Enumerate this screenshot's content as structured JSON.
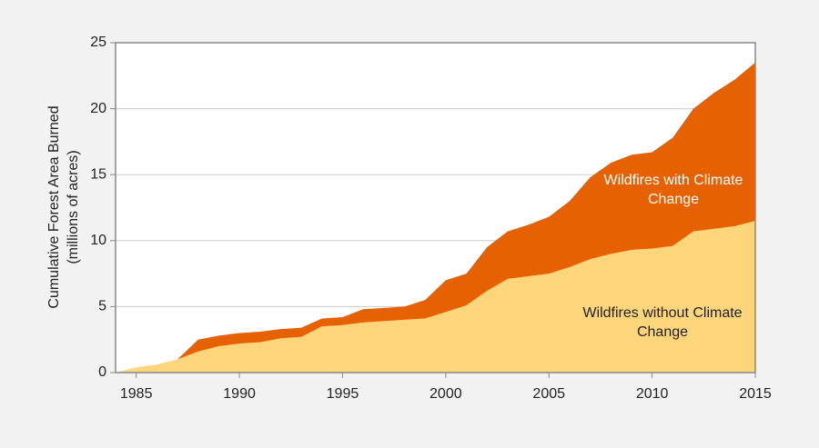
{
  "chart_data": {
    "type": "stacked_area",
    "y_label": [
      "Cumulative Forest Area Burned",
      "(millions of acres)"
    ],
    "x": [
      1984,
      1985,
      1986,
      1987,
      1988,
      1989,
      1990,
      1991,
      1992,
      1993,
      1994,
      1995,
      1996,
      1997,
      1998,
      1999,
      2000,
      2001,
      2002,
      2003,
      2004,
      2005,
      2006,
      2007,
      2008,
      2009,
      2010,
      2011,
      2012,
      2013,
      2014,
      2015
    ],
    "series": [
      {
        "name": "Wildfires without Climate Change",
        "color": "#fdd67b",
        "values": [
          0,
          0.4,
          0.6,
          1.0,
          1.6,
          2.0,
          2.2,
          2.3,
          2.6,
          2.7,
          3.5,
          3.6,
          3.8,
          3.9,
          4.0,
          4.1,
          4.6,
          5.1,
          6.2,
          7.1,
          7.3,
          7.5,
          8.0,
          8.6,
          9.0,
          9.3,
          9.4,
          9.6,
          10.7,
          10.9,
          11.1,
          11.5
        ]
      },
      {
        "name": "Wildfires with Climate Change",
        "color": "#e66101",
        "values": [
          0,
          0,
          0,
          0,
          0.9,
          0.8,
          0.8,
          0.8,
          0.7,
          0.7,
          0.6,
          0.6,
          1.0,
          1.0,
          1.0,
          1.4,
          2.4,
          2.4,
          3.3,
          3.6,
          3.9,
          4.3,
          5.0,
          6.2,
          6.9,
          7.2,
          7.3,
          8.2,
          9.3,
          10.3,
          11.1,
          12.0
        ]
      }
    ],
    "xlim": [
      1984,
      2015
    ],
    "xticks": [
      1985,
      1990,
      1995,
      2000,
      2005,
      2010,
      2015
    ],
    "ylim": [
      0,
      25
    ],
    "yticks": [
      0,
      5,
      10,
      15,
      20,
      25
    ],
    "grid": true
  }
}
